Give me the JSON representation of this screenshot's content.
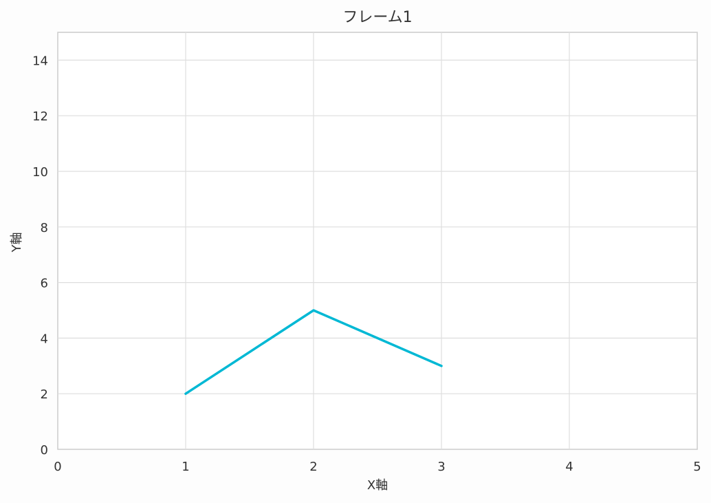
{
  "chart_data": {
    "type": "line",
    "title": "フレーム1",
    "xlabel": "X軸",
    "ylabel": "Y軸",
    "xlim": [
      0,
      5
    ],
    "ylim": [
      0,
      15
    ],
    "x_ticks": [
      "0",
      "1",
      "2",
      "3",
      "4",
      "5"
    ],
    "y_ticks": [
      "0",
      "2",
      "4",
      "6",
      "8",
      "10",
      "12",
      "14"
    ],
    "grid": true,
    "series": [
      {
        "x": [
          1,
          2,
          3
        ],
        "y": [
          2,
          5,
          3
        ],
        "color": "#00b8d4"
      }
    ]
  }
}
